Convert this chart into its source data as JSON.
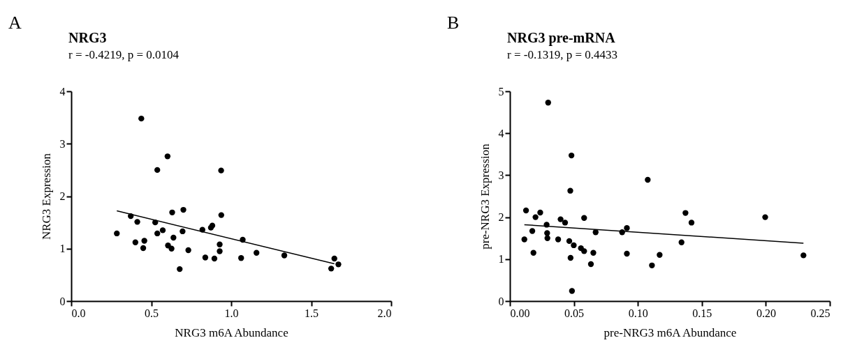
{
  "chart_data": [
    {
      "type": "scatter",
      "title": "NRG3",
      "subtitle": "r = -0.4219, p = 0.0104",
      "xlabel": "NRG3 m6A Abundance",
      "ylabel": "NRG3 Expression",
      "annotations": [
        "A"
      ],
      "xlim": [
        0,
        2
      ],
      "ylim": [
        0,
        4
      ],
      "xticks": [
        {
          "value": 0,
          "label": "0.0"
        },
        {
          "value": 0.5,
          "label": "0.5"
        },
        {
          "value": 1,
          "label": "1.0"
        },
        {
          "value": 1.5,
          "label": "1.5"
        },
        {
          "value": 2,
          "label": "2.0"
        }
      ],
      "yticks": [
        0,
        1,
        2,
        3,
        4
      ],
      "series": [
        {
          "marker": "circle",
          "color": "#000000",
          "x": [
            0.285,
            0.438,
            0.372,
            0.413,
            0.401,
            0.457,
            0.45,
            0.602,
            0.538,
            0.525,
            0.538,
            0.572,
            0.631,
            0.639,
            0.605,
            0.627,
            0.701,
            0.696,
            0.678,
            0.732,
            0.82,
            0.873,
            0.882,
            0.838,
            0.895,
            0.937,
            0.938,
            0.928,
            0.928,
            1.072,
            1.062,
            1.158,
            1.332,
            1.645,
            1.67,
            1.625
          ],
          "values": [
            1.29,
            3.48,
            1.62,
            1.51,
            1.12,
            1.15,
            1.01,
            2.76,
            2.5,
            1.5,
            1.29,
            1.35,
            1.69,
            1.21,
            1.06,
            1.0,
            1.74,
            1.33,
            0.61,
            0.97,
            1.36,
            1.4,
            1.44,
            0.83,
            0.81,
            2.49,
            1.64,
            1.08,
            0.95,
            1.17,
            0.82,
            0.92,
            0.87,
            0.81,
            0.7,
            0.62
          ]
        },
        {
          "type": "line",
          "color": "#000000",
          "x": [
            0.285,
            1.645
          ],
          "values": [
            1.72,
            0.71
          ]
        }
      ]
    },
    {
      "type": "scatter",
      "title": "NRG3 pre-mRNA",
      "subtitle": "r = -0.1319, p = 0.4433",
      "xlabel": "pre-NRG3 m6A Abundance",
      "ylabel": "pre-NRG3 Expression",
      "annotations": [
        "B"
      ],
      "xlim": [
        0,
        0.25
      ],
      "ylim": [
        0,
        5
      ],
      "xticks": [
        {
          "value": 0,
          "label": "0.00"
        },
        {
          "value": 0.05,
          "label": "0.05"
        },
        {
          "value": 0.1,
          "label": "0.10"
        },
        {
          "value": 0.15,
          "label": "0.15"
        },
        {
          "value": 0.2,
          "label": "0.20"
        },
        {
          "value": 0.25,
          "label": "0.25"
        }
      ],
      "yticks": [
        0,
        1,
        2,
        3,
        4,
        5
      ],
      "series": [
        {
          "marker": "circle",
          "color": "#000000",
          "x": [
            0.0113,
            0.0126,
            0.0175,
            0.0184,
            0.02,
            0.0237,
            0.0287,
            0.0291,
            0.0293,
            0.0299,
            0.0377,
            0.0396,
            0.0431,
            0.0464,
            0.0472,
            0.0474,
            0.0481,
            0.0485,
            0.0499,
            0.0555,
            0.058,
            0.058,
            0.0633,
            0.0652,
            0.067,
            0.0877,
            0.0914,
            0.0914,
            0.1077,
            0.111,
            0.117,
            0.1341,
            0.1372,
            0.1419,
            0.1995,
            0.2294
          ],
          "values": [
            1.47,
            2.16,
            1.67,
            1.15,
            2.0,
            2.11,
            1.82,
            1.62,
            1.5,
            4.73,
            1.47,
            1.95,
            1.87,
            1.43,
            2.63,
            1.03,
            3.47,
            0.24,
            1.33,
            1.26,
            1.19,
            1.98,
            0.88,
            1.15,
            1.64,
            1.64,
            1.74,
            1.13,
            2.89,
            0.85,
            1.1,
            1.4,
            2.1,
            1.87,
            2.0,
            1.09
          ]
        },
        {
          "type": "line",
          "color": "#000000",
          "x": [
            0.0113,
            0.2294
          ],
          "values": [
            1.82,
            1.38
          ]
        }
      ]
    }
  ]
}
